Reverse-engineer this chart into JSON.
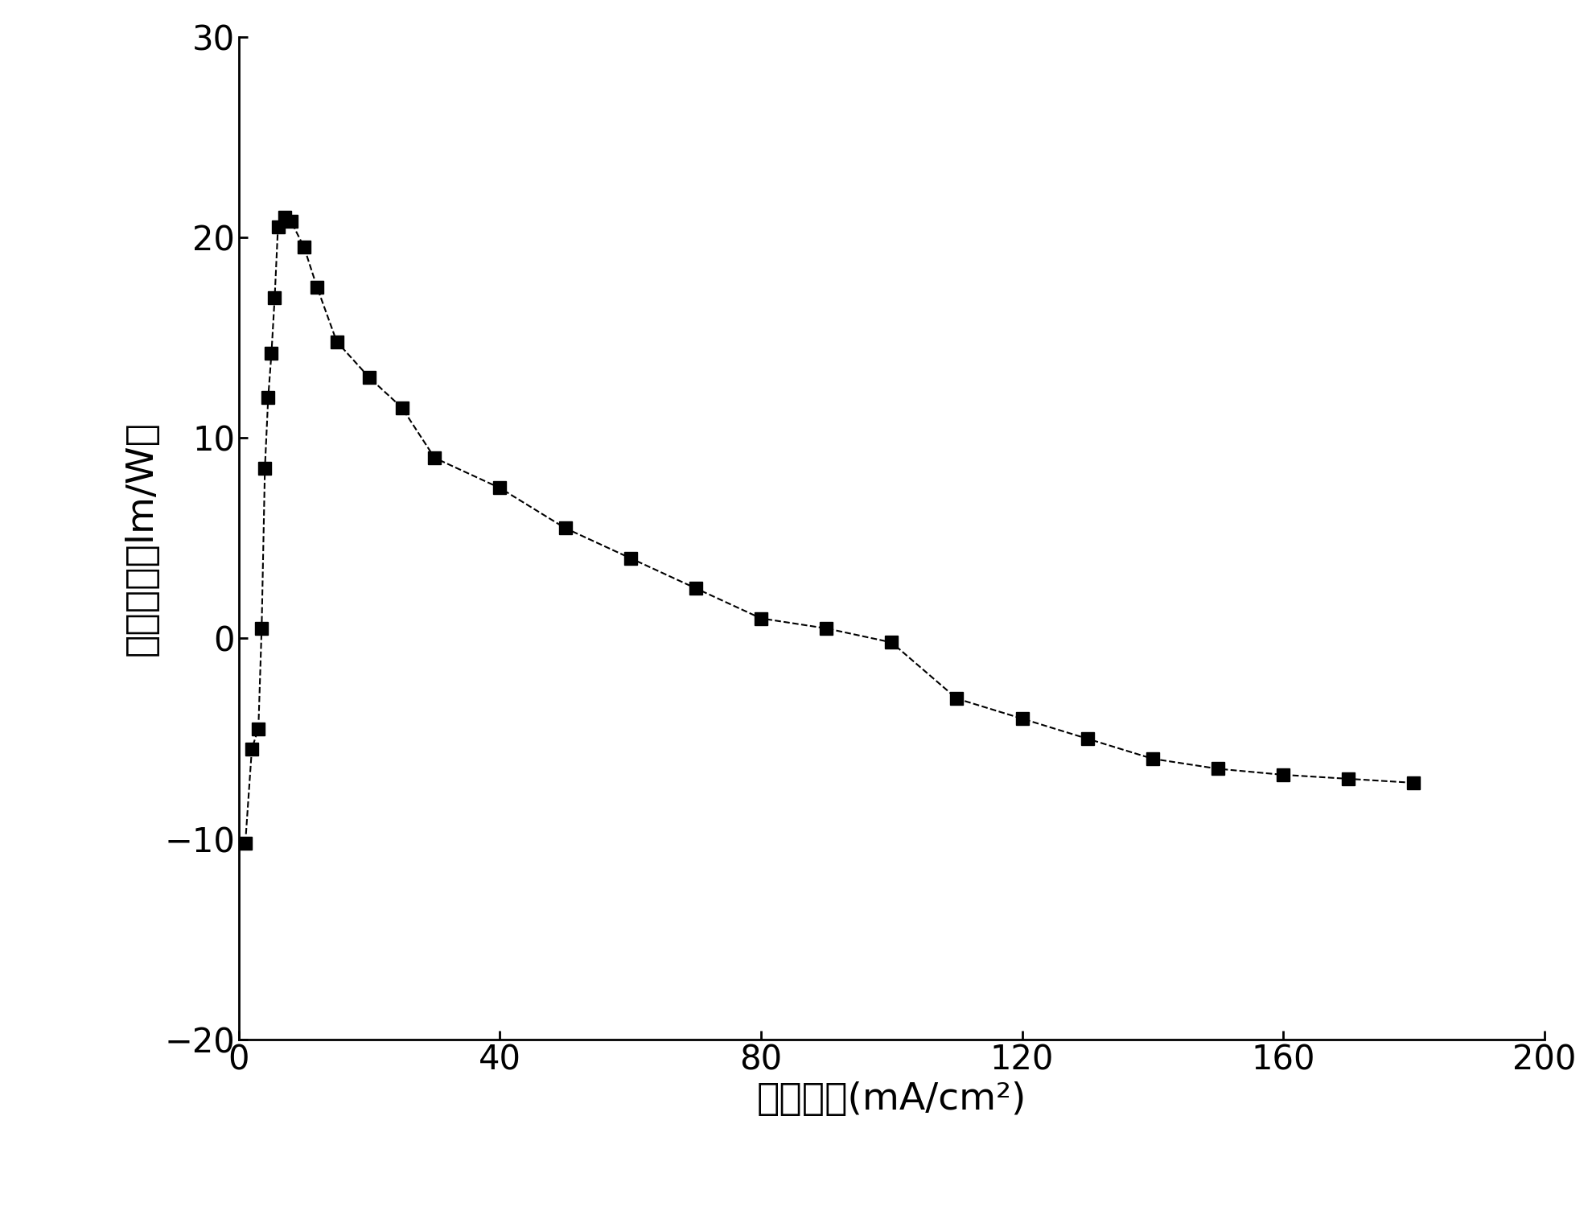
{
  "x": [
    1,
    2,
    3,
    3.5,
    4,
    4.5,
    5,
    5.5,
    6,
    7,
    8,
    10,
    12,
    15,
    20,
    25,
    30,
    40,
    50,
    60,
    70,
    80,
    90,
    100,
    110,
    120,
    130,
    140,
    150,
    160,
    170,
    180
  ],
  "y": [
    -10.2,
    -5.5,
    -4.5,
    0.5,
    8.5,
    12.0,
    14.2,
    17.0,
    20.5,
    21.0,
    20.8,
    19.5,
    17.5,
    14.8,
    13.0,
    11.5,
    9.0,
    7.5,
    5.5,
    4.0,
    2.5,
    1.0,
    0.5,
    -0.2,
    -3.0,
    -4.0,
    -5.0,
    -6.0,
    -6.5,
    -6.8,
    -7.0,
    -7.2
  ],
  "xlabel": "电流密度(mA/cm²)",
  "ylabel": "流明效率（lm/W）",
  "xlim": [
    0,
    200
  ],
  "ylim": [
    -20,
    30
  ],
  "xticks": [
    0,
    40,
    80,
    120,
    160,
    200
  ],
  "yticks": [
    -20,
    -10,
    0,
    10,
    20,
    30
  ],
  "marker": "s",
  "markersize": 11,
  "line_color": "black",
  "linestyle": "--",
  "linewidth": 1.5,
  "xlabel_fontsize": 34,
  "ylabel_fontsize": 34,
  "tick_fontsize": 30,
  "background_color": "#ffffff"
}
